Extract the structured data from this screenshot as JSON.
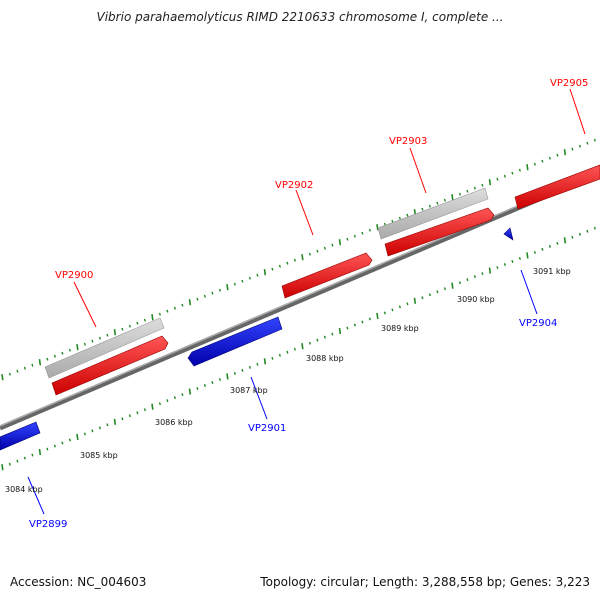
{
  "title": "Vibrio parahaemolyticus RIMD 2210633 chromosome I, complete ...",
  "footer": {
    "accession": "Accession: NC_004603",
    "stats": "Topology: circular; Length: 3,288,558 bp; Genes: 3,223"
  },
  "colors": {
    "forward": "#ff0000",
    "reverse": "#0000ff",
    "cds_grey": "#bbbbbb",
    "backbone": "#888888",
    "ticks": "#228822",
    "text": "#111111"
  },
  "scale_labels": [
    "3084 kbp",
    "3085 kbp",
    "3086 kbp",
    "3087 kbp",
    "3088 kbp",
    "3089 kbp",
    "3090 kbp",
    "3091 kbp"
  ],
  "genes": [
    {
      "name": "VP2899",
      "strand": "reverse"
    },
    {
      "name": "VP2900",
      "strand": "forward"
    },
    {
      "name": "VP2901",
      "strand": "reverse"
    },
    {
      "name": "VP2902",
      "strand": "forward"
    },
    {
      "name": "VP2903",
      "strand": "forward"
    },
    {
      "name": "VP2904",
      "strand": "reverse"
    },
    {
      "name": "VP2905",
      "strand": "forward"
    }
  ]
}
